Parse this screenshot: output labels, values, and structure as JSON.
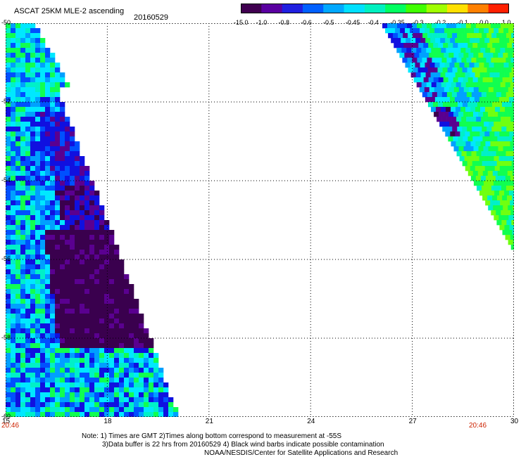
{
  "header": {
    "title": "ASCAT 25KM MLE-2 ascending",
    "date": "20160529"
  },
  "colorbar": {
    "labels": [
      "-15.0",
      "-1.0",
      "-0.8",
      "-0.6",
      "-0.5",
      "-0.45",
      "-0.4",
      "-0.35",
      "-0.3",
      "-0.2",
      "-0.1",
      "0.0",
      "1.0"
    ],
    "colors": [
      "#400050",
      "#5a00a0",
      "#2020e0",
      "#0060ff",
      "#00a8ff",
      "#00e0ff",
      "#00f0c0",
      "#00ff60",
      "#40ff00",
      "#a0ff00",
      "#ffe000",
      "#ff8000",
      "#ff2000"
    ]
  },
  "axes": {
    "x_ticks": [
      "15",
      "18",
      "21",
      "24",
      "27",
      "30"
    ],
    "y_ticks": [
      "-50",
      "-52",
      "-54",
      "-56",
      "-58",
      "-60"
    ],
    "x_range": [
      15,
      30
    ],
    "y_range": [
      -50,
      -60
    ]
  },
  "time_labels": {
    "left": "20:46",
    "right": "20:46"
  },
  "notes": {
    "line1": "Note: 1) Times are GMT 2)Times along bottom correspond to measurement at -55S",
    "line2": "3)Data buffer is 22 hrs from 20160529 4) Black wind barbs indicate possible contamination",
    "line3": "NOAA/NESDIS/Center for Satellite Applications and Research"
  }
}
